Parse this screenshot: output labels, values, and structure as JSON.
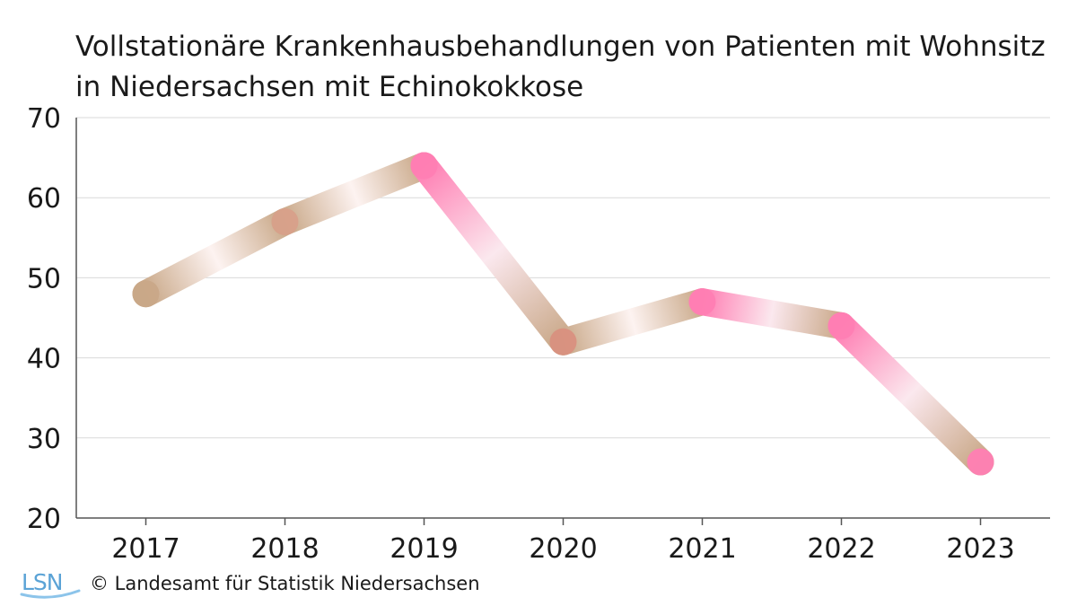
{
  "chart_data": {
    "type": "line",
    "title": "Vollstationäre Krankenhausbehandlungen von Patienten mit Wohnsitz in Niedersachsen mit Echinokokkose",
    "xlabel": "",
    "ylabel": "",
    "categories": [
      "2017",
      "2018",
      "2019",
      "2020",
      "2021",
      "2022",
      "2023"
    ],
    "series": [
      {
        "values": [
          48,
          57,
          64,
          42,
          47,
          44,
          27
        ]
      }
    ],
    "ylim": [
      20,
      70
    ],
    "yticks": [
      "20",
      "30",
      "40",
      "50",
      "60",
      "70"
    ],
    "grid": true,
    "colors": {
      "line": "#c9a888",
      "highlight": "#ff7eb3",
      "grid": "#d9d9d9",
      "axis": "#555555"
    }
  },
  "footer": {
    "logo_text": "LSN",
    "copyright": "© Landesamt für Statistik Niedersachsen"
  }
}
